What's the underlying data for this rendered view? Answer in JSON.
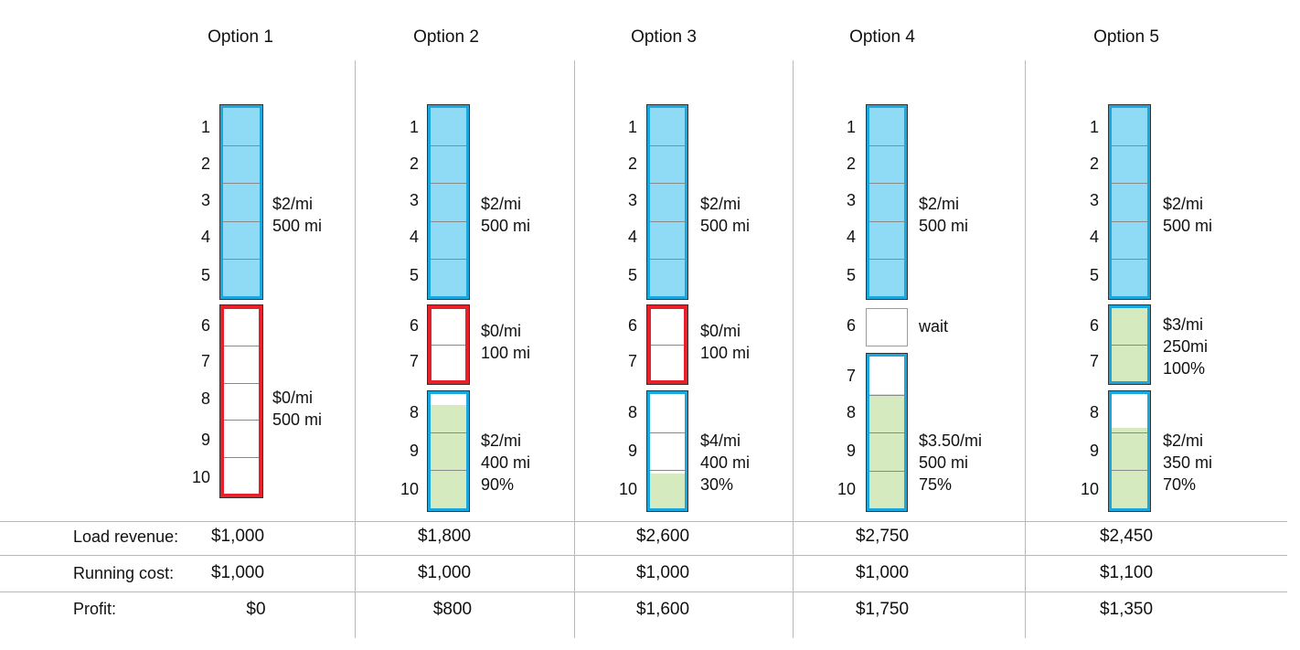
{
  "options": [
    {
      "title": "Option 1",
      "days": [
        "1",
        "2",
        "3",
        "4",
        "5",
        "6",
        "7",
        "8",
        "9",
        "10"
      ],
      "segments": [
        {
          "type": "blue",
          "start": 1,
          "end": 5,
          "fill": 100,
          "lines": [
            "$2/mi",
            "500 mi"
          ]
        },
        {
          "type": "red",
          "start": 6,
          "end": 10,
          "fill": 0,
          "lines": [
            "$0/mi",
            "500 mi"
          ]
        }
      ],
      "revenue": "$1,000",
      "cost": "$1,000",
      "profit": "$0"
    },
    {
      "title": "Option 2",
      "days": [
        "1",
        "2",
        "3",
        "4",
        "5",
        "6",
        "7",
        "8",
        "9",
        "10"
      ],
      "segments": [
        {
          "type": "blue",
          "start": 1,
          "end": 5,
          "fill": 100,
          "lines": [
            "$2/mi",
            "500 mi"
          ]
        },
        {
          "type": "red",
          "start": 6,
          "end": 7,
          "fill": 0,
          "lines": [
            "$0/mi",
            "100 mi"
          ]
        },
        {
          "type": "blue",
          "start": 8,
          "end": 10,
          "fill": 90,
          "lines": [
            "$2/mi",
            "400 mi",
            "90%"
          ]
        }
      ],
      "revenue": "$1,800",
      "cost": "$1,000",
      "profit": "$800"
    },
    {
      "title": "Option 3",
      "days": [
        "1",
        "2",
        "3",
        "4",
        "5",
        "6",
        "7",
        "8",
        "9",
        "10"
      ],
      "segments": [
        {
          "type": "blue",
          "start": 1,
          "end": 5,
          "fill": 100,
          "lines": [
            "$2/mi",
            "500 mi"
          ]
        },
        {
          "type": "red",
          "start": 6,
          "end": 7,
          "fill": 0,
          "lines": [
            "$0/mi",
            "100 mi"
          ]
        },
        {
          "type": "blue",
          "start": 8,
          "end": 10,
          "fill": 30,
          "lines": [
            "$4/mi",
            "400 mi",
            "30%"
          ]
        }
      ],
      "revenue": "$2,600",
      "cost": "$1,000",
      "profit": "$1,600"
    },
    {
      "title": "Option 4",
      "days": [
        "1",
        "2",
        "3",
        "4",
        "5",
        "6",
        "7",
        "8",
        "9",
        "10"
      ],
      "segments": [
        {
          "type": "blue",
          "start": 1,
          "end": 5,
          "fill": 100,
          "lines": [
            "$2/mi",
            "500 mi"
          ]
        },
        {
          "type": "plain",
          "start": 6,
          "end": 6,
          "fill": 0,
          "lines": [
            "wait"
          ]
        },
        {
          "type": "blue",
          "start": 7,
          "end": 10,
          "fill": 75,
          "lines": [
            "$3.50/mi",
            "500 mi",
            "75%"
          ]
        }
      ],
      "revenue": "$2,750",
      "cost": "$1,000",
      "profit": "$1,750"
    },
    {
      "title": "Option 5",
      "days": [
        "1",
        "2",
        "3",
        "4",
        "5",
        "6",
        "7",
        "8",
        "9",
        "10"
      ],
      "segments": [
        {
          "type": "blue",
          "start": 1,
          "end": 5,
          "fill": 100,
          "lines": [
            "$2/mi",
            "500 mi"
          ]
        },
        {
          "type": "blue",
          "start": 6,
          "end": 7,
          "fill": 100,
          "lines": [
            "$3/mi",
            "250mi",
            "100%"
          ]
        },
        {
          "type": "blue",
          "start": 8,
          "end": 10,
          "fill": 70,
          "lines": [
            "$2/mi",
            "350 mi",
            "70%"
          ]
        }
      ],
      "revenue": "$2,450",
      "cost": "$1,100",
      "profit": "$1,350"
    }
  ],
  "rows": {
    "revenue_label": "Load revenue:",
    "cost_label": "Running cost:",
    "profit_label": "Profit:"
  },
  "colors": {
    "blue_border": "#1aa7dd",
    "light_blue_fill": "#8fdaf5",
    "red_border": "#e8202a",
    "green_fill": "#d6eac0"
  }
}
